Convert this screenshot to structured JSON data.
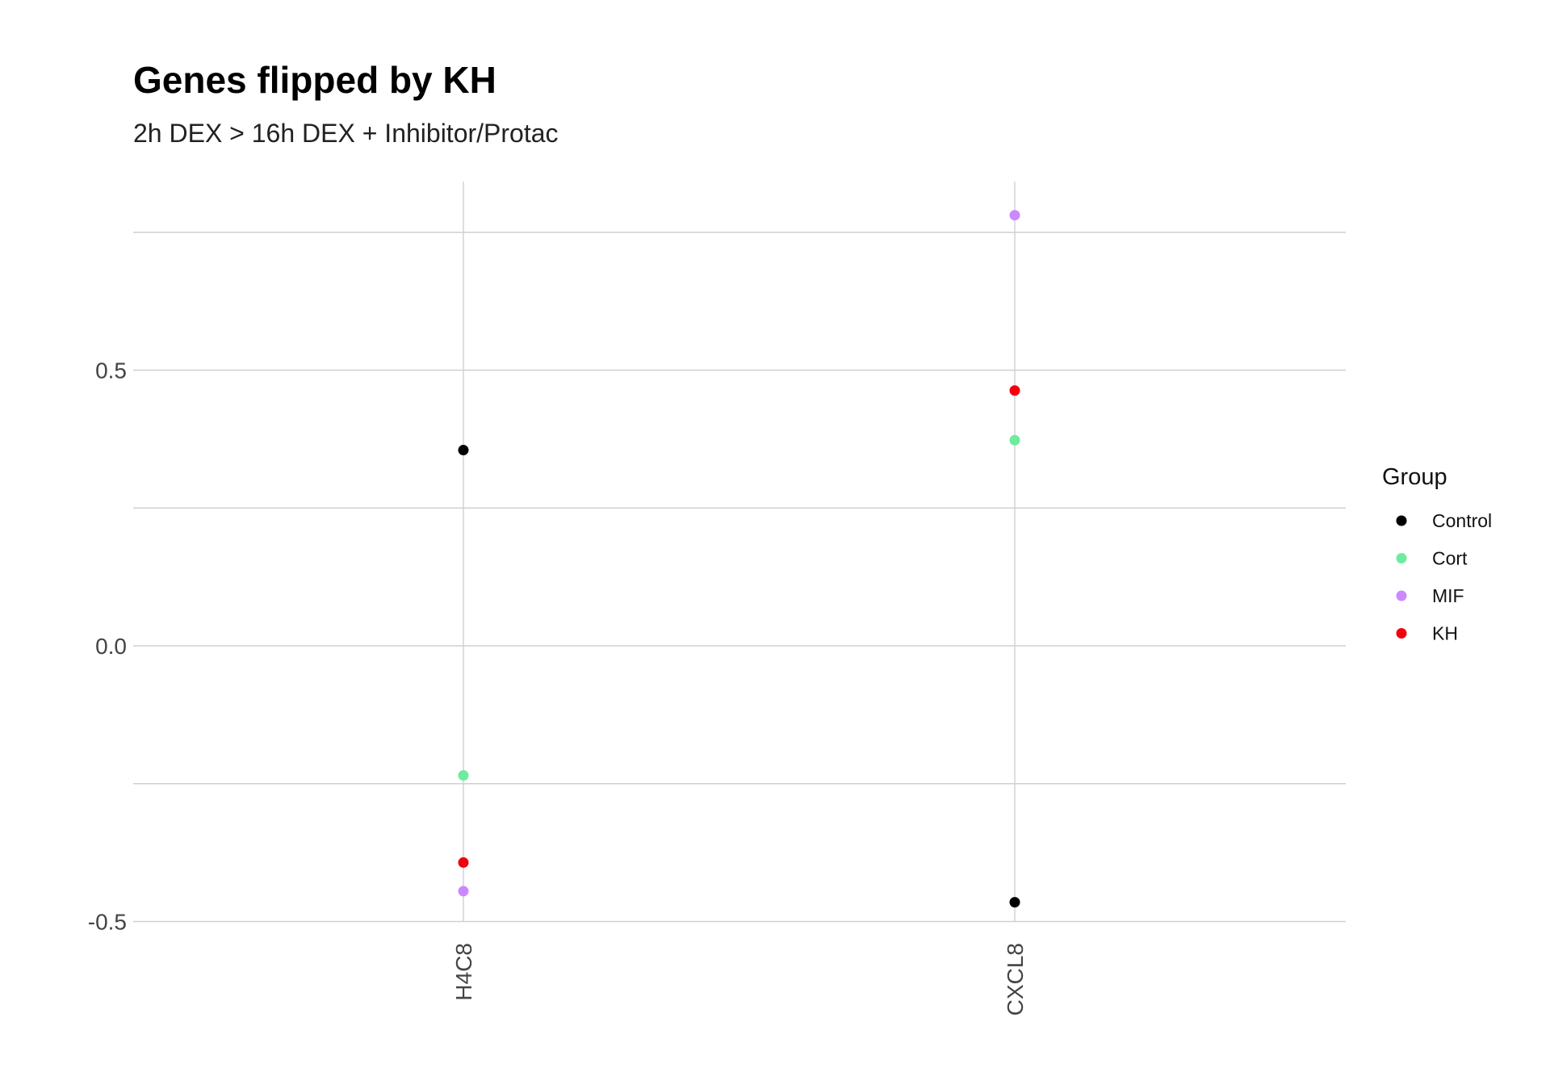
{
  "chart_data": {
    "type": "scatter",
    "title": "Genes flipped by KH",
    "subtitle": "2h DEX > 16h DEX + Inhibitor/Protac",
    "xlabel": "",
    "ylabel": "",
    "categories": [
      "H4C8",
      "CXCL8"
    ],
    "y_ticks": [
      {
        "value": 0.5,
        "label": "0.5"
      },
      {
        "value": 0.0,
        "label": "0.0"
      },
      {
        "value": -0.5,
        "label": "-0.5"
      }
    ],
    "y_minor_gridlines": [
      0.75,
      0.25,
      -0.25
    ],
    "ylim": [
      -0.5,
      0.8
    ],
    "grid": true,
    "legend": {
      "title": "Group",
      "position": "right"
    },
    "series": [
      {
        "name": "Control",
        "color": "#000000",
        "values": [
          0.355,
          -0.465
        ]
      },
      {
        "name": "Cort",
        "color": "#6EEB9E",
        "values": [
          -0.235,
          0.373
        ]
      },
      {
        "name": "MIF",
        "color": "#CC88FF",
        "values": [
          -0.445,
          0.781
        ]
      },
      {
        "name": "KH",
        "color": "#F2000E",
        "values": [
          -0.393,
          0.463
        ]
      }
    ]
  }
}
